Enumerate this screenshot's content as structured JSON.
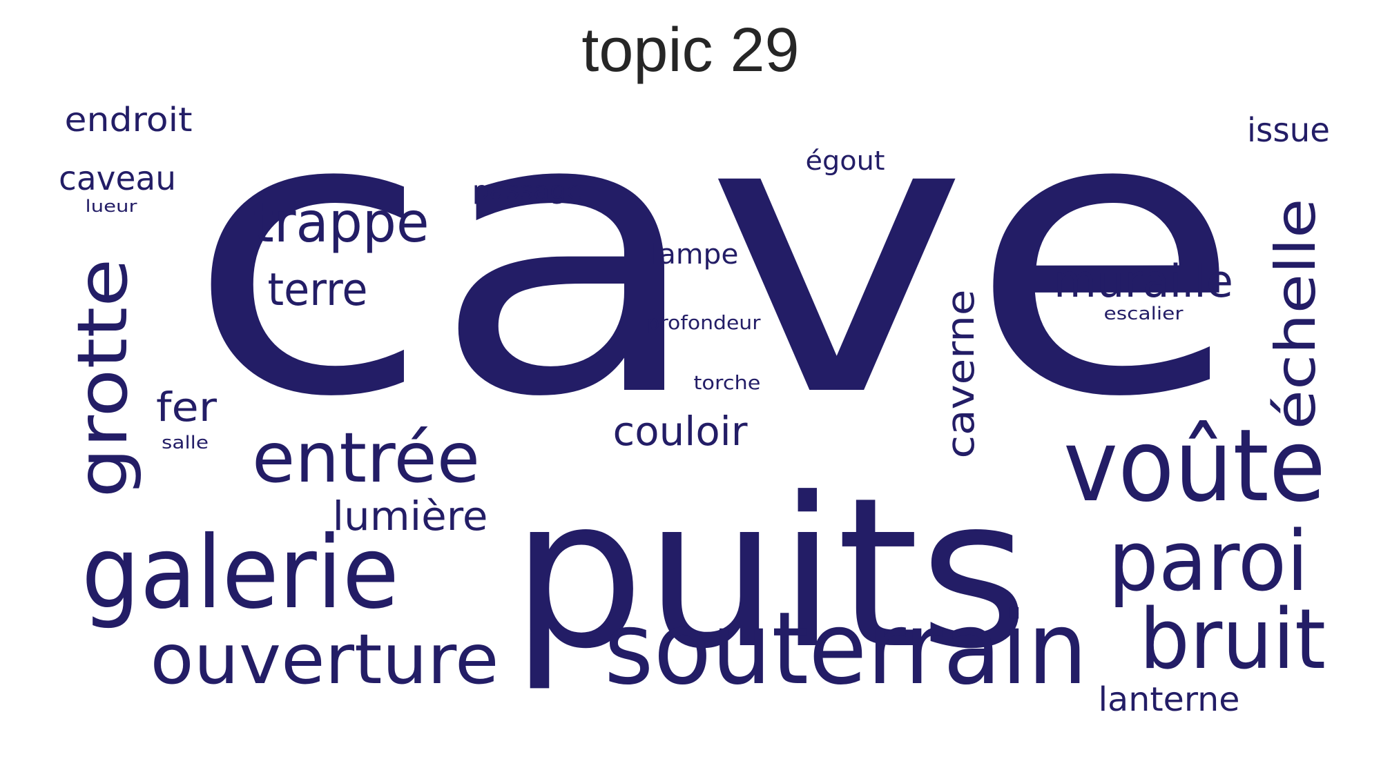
{
  "title": "topic 29",
  "word_color": "#231d66",
  "words": [
    {
      "text": "cave"
    },
    {
      "text": "puits"
    },
    {
      "text": "souterrain"
    },
    {
      "text": "galerie"
    },
    {
      "text": "voûte"
    },
    {
      "text": "paroi"
    },
    {
      "text": "bruit"
    },
    {
      "text": "entrée"
    },
    {
      "text": "ouverture"
    },
    {
      "text": "grotte"
    },
    {
      "text": "trappe"
    },
    {
      "text": "échelle"
    },
    {
      "text": "muraille"
    },
    {
      "text": "terre"
    },
    {
      "text": "caverne"
    },
    {
      "text": "couloir"
    },
    {
      "text": "lumière"
    },
    {
      "text": "fer"
    },
    {
      "text": "endroit"
    },
    {
      "text": "caveau"
    },
    {
      "text": "issue"
    },
    {
      "text": "lanterne"
    },
    {
      "text": "lampe"
    },
    {
      "text": "égout"
    },
    {
      "text": "passage"
    },
    {
      "text": "profondeur"
    },
    {
      "text": "torche"
    },
    {
      "text": "escalier"
    },
    {
      "text": "salle"
    },
    {
      "text": "lueur"
    }
  ]
}
